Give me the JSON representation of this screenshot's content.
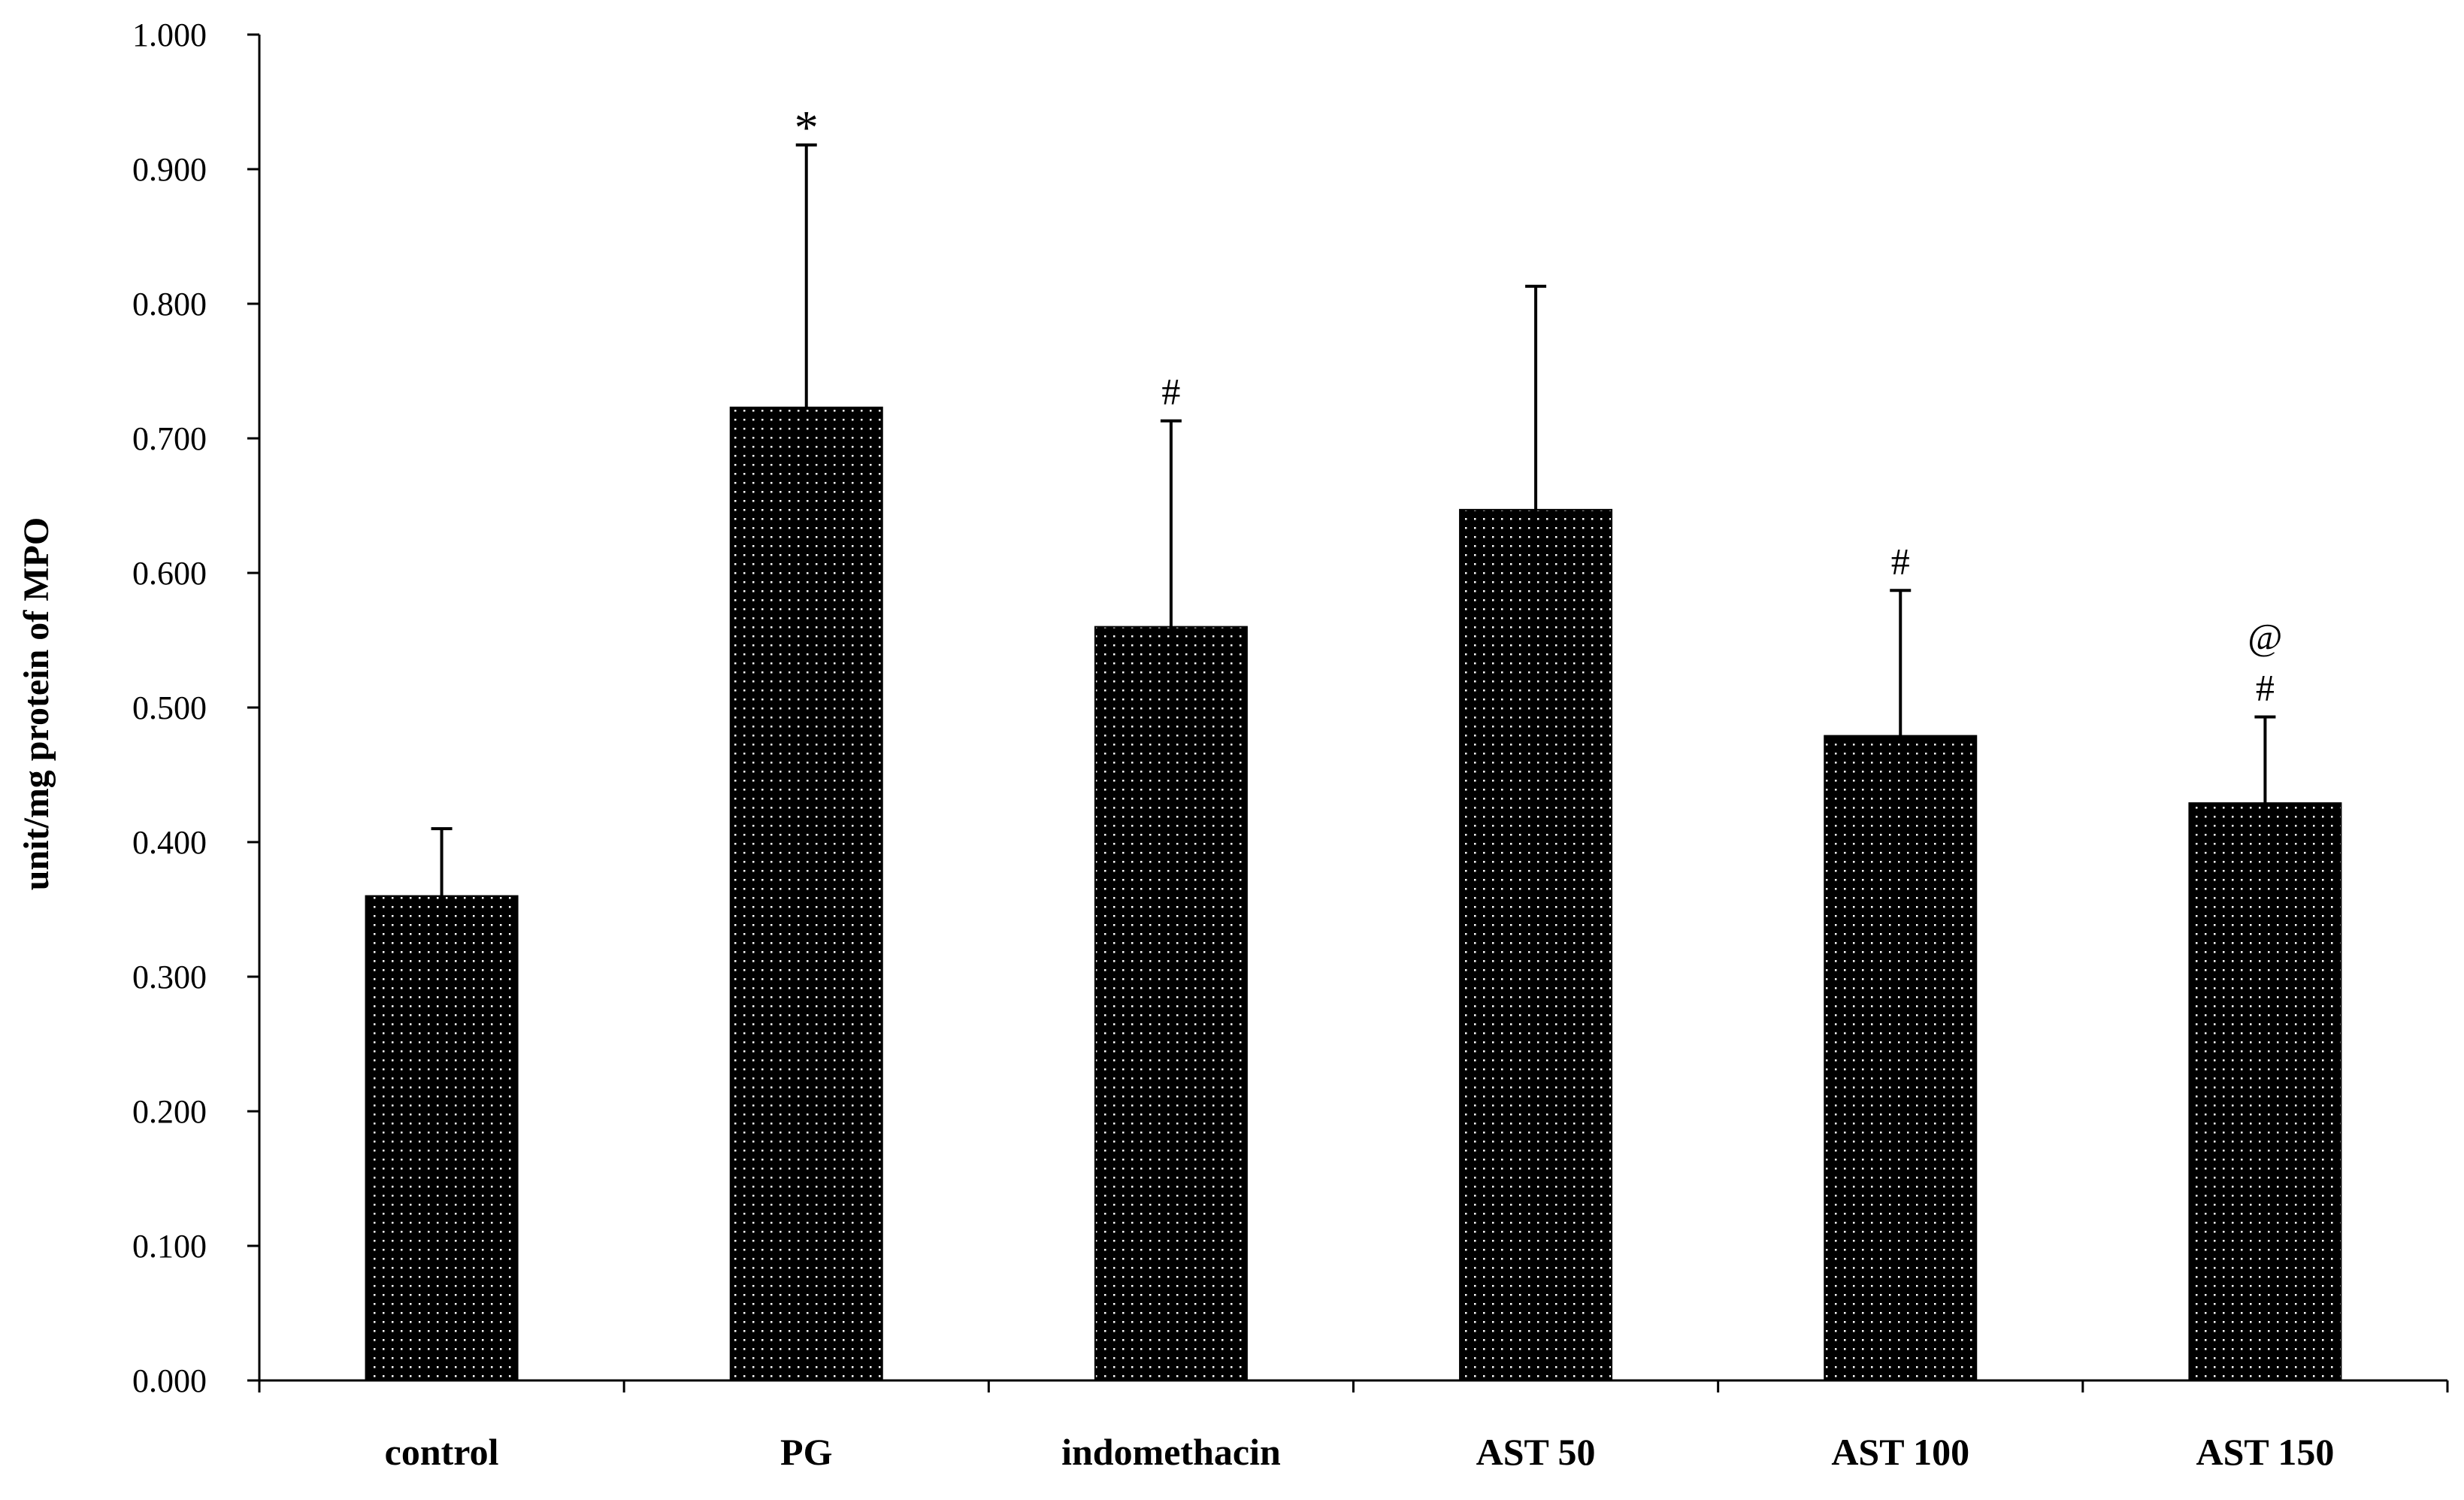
{
  "chart_data": {
    "type": "bar",
    "title": "",
    "xlabel": "",
    "ylabel": "unit/mg protein  of MPO",
    "ylim": [
      0,
      1.0
    ],
    "yticks": [
      "0.000",
      "0.100",
      "0.200",
      "0.300",
      "0.400",
      "0.500",
      "0.600",
      "0.700",
      "0.800",
      "0.900",
      "1.000"
    ],
    "grid": false,
    "legend": "none",
    "categories": [
      "control",
      "PG",
      "indomethacin",
      "AST 50",
      "AST 100",
      "AST 150"
    ],
    "values": [
      0.36,
      0.723,
      0.56,
      0.647,
      0.479,
      0.429
    ],
    "errors": [
      0.05,
      0.195,
      0.153,
      0.166,
      0.108,
      0.064
    ],
    "annotations": [
      {
        "category": "PG",
        "text": "*"
      },
      {
        "category": "indomethacin",
        "text": "#"
      },
      {
        "category": "AST 100",
        "text": "#"
      },
      {
        "category": "AST 150",
        "text": "#"
      },
      {
        "category": "AST 150",
        "text": "@"
      }
    ],
    "bar_color": "#000000",
    "dot_color": "#ffffff"
  }
}
